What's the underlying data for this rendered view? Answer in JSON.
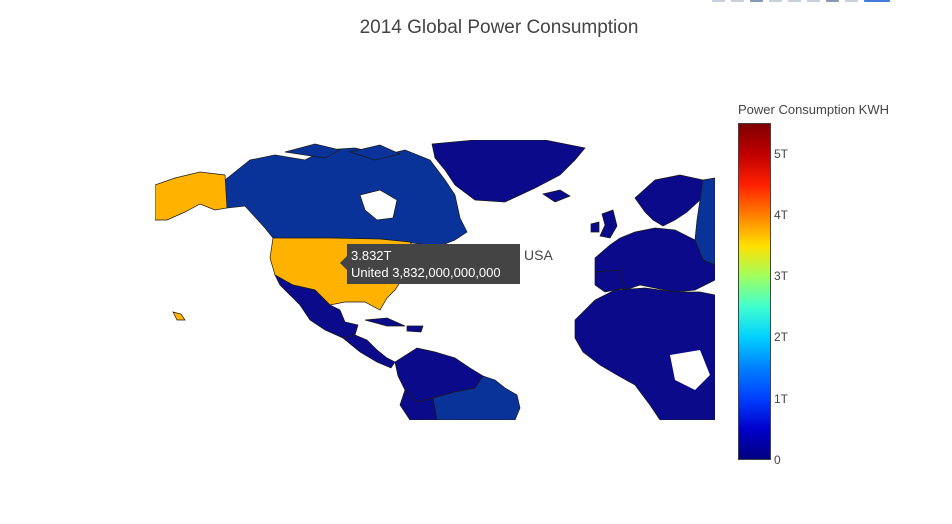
{
  "title": "2014 Global Power Consumption",
  "modebar": {
    "icons": [
      "camera-icon",
      "zoom-icon",
      "pan-icon",
      "zoom-in-icon",
      "zoom-out-icon",
      "autoscale-icon",
      "reset-icon",
      "hover-icon",
      "plotly-logo"
    ]
  },
  "colorbar": {
    "title": "Power Consumption KWH",
    "ticks": [
      "5T",
      "4T",
      "3T",
      "2T",
      "1T",
      "0"
    ],
    "range": [
      0,
      5.5
    ],
    "colorscale": [
      "#000080",
      "#0000cc",
      "#0040ff",
      "#0080ff",
      "#00d0ff",
      "#40ffd0",
      "#a0ff60",
      "#ffe000",
      "#ff8000",
      "#ff2000",
      "#c00000",
      "#800000"
    ]
  },
  "map": {
    "colors": {
      "ocean": "#ffffff",
      "default_country": "#0a0a8a",
      "canada_russia": "#0a3399",
      "greenland": "#0a0a8a",
      "usa": "#ffb300",
      "brazil": "#0a3399",
      "border": "#1a1a1a"
    },
    "highlighted_country": "USA",
    "highlighted_value": "3.832T"
  },
  "tooltip": {
    "value": "3.832T",
    "detail": "United 3,832,000,000,000",
    "name": "USA"
  }
}
